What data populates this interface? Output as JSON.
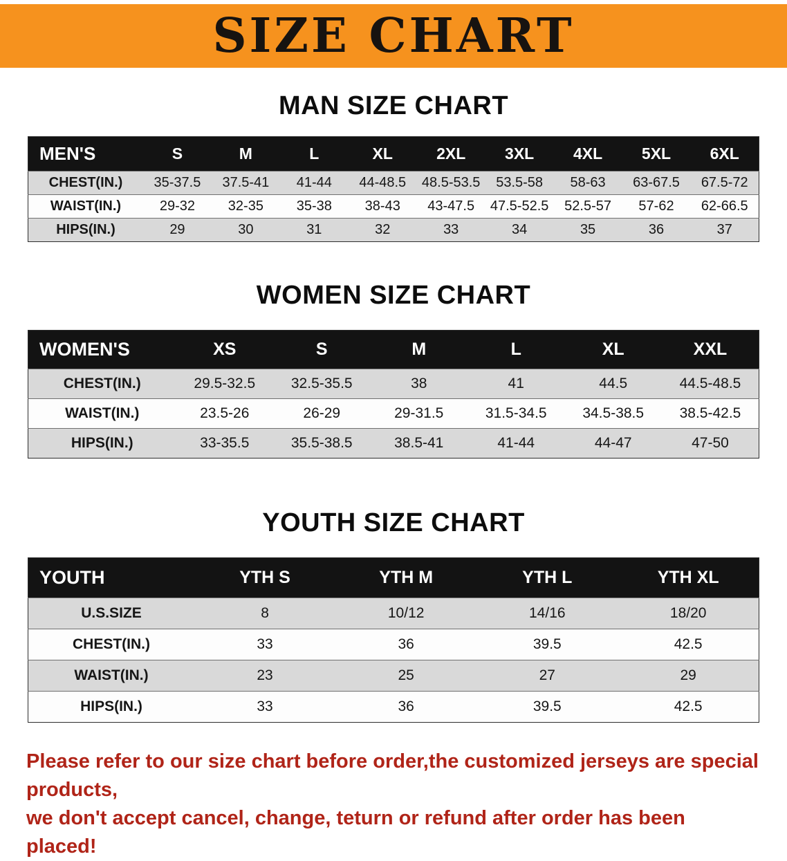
{
  "banner": {
    "title": "SIZE CHART",
    "bg_color": "#f6921e",
    "text_color": "#171310"
  },
  "footer": {
    "line1": "Please refer to our size chart before order,the customized jerseys are special products,",
    "line2": "we don't accept cancel, change, teturn or refund after order has been placed!",
    "color": "#b02418"
  },
  "chart_data": [
    {
      "type": "table",
      "name": "mens",
      "title": "MAN SIZE CHART",
      "columns": [
        "MEN'S",
        "S",
        "M",
        "L",
        "XL",
        "2XL",
        "3XL",
        "4XL",
        "5XL",
        "6XL"
      ],
      "rows": [
        [
          "CHEST(IN.)",
          "35-37.5",
          "37.5-41",
          "41-44",
          "44-48.5",
          "48.5-53.5",
          "53.5-58",
          "58-63",
          "63-67.5",
          "67.5-72"
        ],
        [
          "WAIST(IN.)",
          "29-32",
          "32-35",
          "35-38",
          "38-43",
          "43-47.5",
          "47.5-52.5",
          "52.5-57",
          "57-62",
          "62-66.5"
        ],
        [
          "HIPS(IN.)",
          "29",
          "30",
          "31",
          "32",
          "33",
          "34",
          "35",
          "36",
          "37"
        ]
      ],
      "header_bg": "#131313",
      "stripe_color": "#d9d9d9"
    },
    {
      "type": "table",
      "name": "womens",
      "title": "WOMEN SIZE CHART",
      "columns": [
        "WOMEN'S",
        "XS",
        "S",
        "M",
        "L",
        "XL",
        "XXL"
      ],
      "rows": [
        [
          "CHEST(IN.)",
          "29.5-32.5",
          "32.5-35.5",
          "38",
          "41",
          "44.5",
          "44.5-48.5"
        ],
        [
          "WAIST(IN.)",
          "23.5-26",
          "26-29",
          "29-31.5",
          "31.5-34.5",
          "34.5-38.5",
          "38.5-42.5"
        ],
        [
          "HIPS(IN.)",
          "33-35.5",
          "35.5-38.5",
          "38.5-41",
          "41-44",
          "44-47",
          "47-50"
        ]
      ],
      "header_bg": "#131313",
      "stripe_color": "#d9d9d9"
    },
    {
      "type": "table",
      "name": "youth",
      "title": "YOUTH SIZE CHART",
      "columns": [
        "YOUTH",
        "YTH S",
        "YTH M",
        "YTH L",
        "YTH XL"
      ],
      "rows": [
        [
          "U.S.SIZE",
          "8",
          "10/12",
          "14/16",
          "18/20"
        ],
        [
          "CHEST(IN.)",
          "33",
          "36",
          "39.5",
          "42.5"
        ],
        [
          "WAIST(IN.)",
          "23",
          "25",
          "27",
          "29"
        ],
        [
          "HIPS(IN.)",
          "33",
          "36",
          "39.5",
          "42.5"
        ]
      ],
      "header_bg": "#131313",
      "stripe_color": "#d9d9d9"
    }
  ]
}
